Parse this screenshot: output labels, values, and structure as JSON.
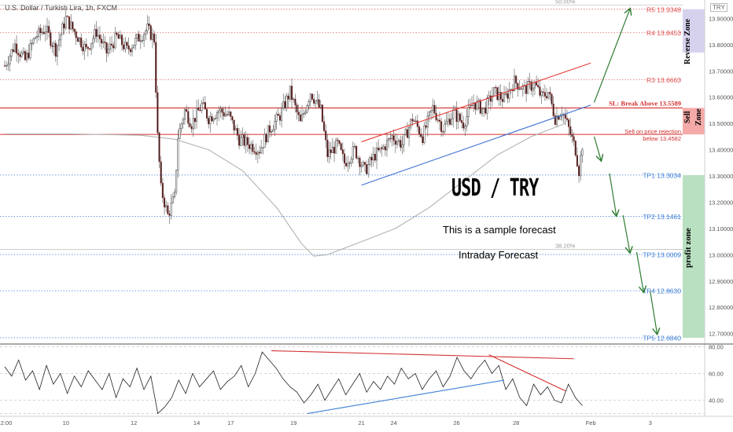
{
  "header": {
    "symbol_line": "U.S. Dollar / Turkish Lira, 1h, FXCM",
    "currency_tag": "TRY"
  },
  "annotations": {
    "title": "USD / TRY",
    "subtitle": "This is a sample forecast",
    "tag": "Intraday Forecast",
    "sell_note_1": "Sell on price rejection",
    "sell_note_2": "below 13.4582",
    "sl_label": "SL: Break Above 13.5589"
  },
  "zones": [
    {
      "label": "Reverse Zone",
      "from": 13.77,
      "to": 13.9348,
      "color": "#d6d2ee",
      "text_color": "#4a3d99"
    },
    {
      "label": "Sell Zone",
      "from": 13.4582,
      "to": 13.5589,
      "color": "#f4aaa8",
      "text_color": "#c62828"
    },
    {
      "label": "profit zone",
      "from": 12.684,
      "to": 13.3034,
      "color": "#b9e0c0",
      "text_color": "#2e7d32"
    }
  ],
  "levels": [
    {
      "label": "R5 13.9348",
      "value": 13.9348,
      "color": "#e05050",
      "style": "dotted"
    },
    {
      "label": "R4 13.8453",
      "value": 13.8453,
      "color": "#e05050",
      "style": "dotted"
    },
    {
      "label": "R3 13.6663",
      "value": 13.6663,
      "color": "#e05050",
      "style": "dotted"
    },
    {
      "label": "TP1 13.3034",
      "value": 13.3034,
      "color": "#3d7fd6",
      "style": "dotted"
    },
    {
      "label": "TP2 13.1461",
      "value": 13.1461,
      "color": "#3d7fd6",
      "style": "dotted"
    },
    {
      "label": "TP3 13.0009",
      "value": 13.0009,
      "color": "#3d7fd6",
      "style": "dotted"
    },
    {
      "label": "TP4 12.8630",
      "value": 12.863,
      "color": "#3d7fd6",
      "style": "dotted"
    },
    {
      "label": "TP5 12.6840",
      "value": 12.684,
      "color": "#3d7fd6",
      "style": "dotted"
    }
  ],
  "fib_levels": [
    {
      "label": "50.00%",
      "value": 13.95
    },
    {
      "label": "38.20%",
      "value": 13.02
    }
  ],
  "solid_lines": [
    {
      "value": 13.5589,
      "color": "#d32f2f"
    },
    {
      "value": 13.4582,
      "color": "#d32f2f"
    }
  ],
  "chart_data": [
    {
      "type": "candlestick",
      "title": "U.S. Dollar / Turkish Lira, 1h, FXCM",
      "ylim": [
        12.66,
        13.97
      ],
      "y_ticks": [
        "13.90000",
        "13.80000",
        "13.70000",
        "13.60000",
        "13.50000",
        "13.40000",
        "13.30000",
        "13.20000",
        "13.10000",
        "13.00000",
        "12.90000",
        "12.80000",
        "12.70000"
      ],
      "y_tick_values": [
        13.9,
        13.8,
        13.7,
        13.6,
        13.5,
        13.4,
        13.3,
        13.2,
        13.1,
        13.0,
        12.9,
        12.8,
        12.7
      ],
      "x_ticks": [
        "12:00",
        "10",
        "12",
        "14",
        "17",
        "19",
        "21",
        "24",
        "26",
        "28",
        "Feb",
        "3"
      ],
      "x_tick_index": [
        0,
        36,
        76,
        113,
        133,
        170,
        210,
        229,
        266,
        301,
        345,
        380
      ],
      "price_path": [
        [
          0,
          13.72
        ],
        [
          6,
          13.8
        ],
        [
          12,
          13.74
        ],
        [
          18,
          13.83
        ],
        [
          24,
          13.86
        ],
        [
          30,
          13.78
        ],
        [
          36,
          13.9
        ],
        [
          42,
          13.84
        ],
        [
          48,
          13.78
        ],
        [
          54,
          13.85
        ],
        [
          60,
          13.77
        ],
        [
          66,
          13.83
        ],
        [
          72,
          13.78
        ],
        [
          78,
          13.82
        ],
        [
          84,
          13.86
        ],
        [
          88,
          13.82
        ],
        [
          90,
          13.45
        ],
        [
          92,
          13.25
        ],
        [
          96,
          13.15
        ],
        [
          100,
          13.22
        ],
        [
          102,
          13.45
        ],
        [
          106,
          13.55
        ],
        [
          110,
          13.5
        ],
        [
          116,
          13.57
        ],
        [
          120,
          13.52
        ],
        [
          126,
          13.55
        ],
        [
          132,
          13.53
        ],
        [
          138,
          13.44
        ],
        [
          144,
          13.42
        ],
        [
          150,
          13.4
        ],
        [
          156,
          13.48
        ],
        [
          162,
          13.53
        ],
        [
          168,
          13.62
        ],
        [
          174,
          13.5
        ],
        [
          180,
          13.62
        ],
        [
          186,
          13.55
        ],
        [
          190,
          13.38
        ],
        [
          196,
          13.42
        ],
        [
          200,
          13.35
        ],
        [
          206,
          13.4
        ],
        [
          212,
          13.32
        ],
        [
          218,
          13.38
        ],
        [
          222,
          13.4
        ],
        [
          228,
          13.45
        ],
        [
          234,
          13.42
        ],
        [
          240,
          13.52
        ],
        [
          246,
          13.45
        ],
        [
          252,
          13.56
        ],
        [
          258,
          13.48
        ],
        [
          264,
          13.54
        ],
        [
          270,
          13.5
        ],
        [
          276,
          13.58
        ],
        [
          282,
          13.55
        ],
        [
          288,
          13.62
        ],
        [
          294,
          13.59
        ],
        [
          300,
          13.66
        ],
        [
          306,
          13.63
        ],
        [
          312,
          13.65
        ],
        [
          316,
          13.6
        ],
        [
          320,
          13.62
        ],
        [
          324,
          13.52
        ],
        [
          328,
          13.55
        ],
        [
          332,
          13.48
        ],
        [
          336,
          13.4
        ],
        [
          338,
          13.32
        ],
        [
          340,
          13.42
        ]
      ],
      "ma_path": [
        [
          0,
          13.46
        ],
        [
          40,
          13.46
        ],
        [
          80,
          13.455
        ],
        [
          100,
          13.44
        ],
        [
          120,
          13.4
        ],
        [
          140,
          13.32
        ],
        [
          160,
          13.18
        ],
        [
          175,
          13.04
        ],
        [
          182,
          12.995
        ],
        [
          190,
          13.0
        ],
        [
          210,
          13.05
        ],
        [
          230,
          13.1
        ],
        [
          250,
          13.18
        ],
        [
          270,
          13.28
        ],
        [
          290,
          13.38
        ],
        [
          310,
          13.45
        ],
        [
          330,
          13.5
        ]
      ],
      "channel": {
        "upper": [
          [
            210,
            13.43
          ],
          [
            345,
            13.73
          ]
        ],
        "lower": [
          [
            210,
            13.265
          ],
          [
            345,
            13.57
          ]
        ]
      },
      "forecast_up": [
        [
          347,
          13.58
        ],
        [
          368,
          13.935
        ]
      ],
      "forecast_down": [
        [
          347,
          13.45
        ],
        [
          351,
          13.36
        ],
        [
          356,
          13.31
        ],
        [
          360,
          13.15
        ],
        [
          364,
          13.15
        ],
        [
          368,
          13.01
        ],
        [
          372,
          13.01
        ],
        [
          376,
          12.86
        ],
        [
          380,
          12.86
        ],
        [
          384,
          12.7
        ]
      ]
    },
    {
      "type": "line",
      "title": "",
      "ylim": [
        28,
        82
      ],
      "y_ticks": [
        "80.00",
        "60.00",
        "40.00"
      ],
      "y_tick_values": [
        80,
        60,
        40
      ],
      "series": [
        {
          "values": [
            65,
            58,
            70,
            55,
            62,
            48,
            66,
            52,
            60,
            45,
            58,
            50,
            62,
            55,
            48,
            60,
            42,
            56,
            50,
            64,
            48,
            58,
            30,
            35,
            42,
            55,
            45,
            60,
            50,
            56,
            62,
            48,
            54,
            58,
            66,
            50,
            60,
            76,
            70,
            64,
            56,
            50,
            46,
            38,
            44,
            52,
            40,
            48,
            56,
            44,
            52,
            60,
            46,
            54,
            48,
            58,
            52,
            64,
            56,
            60,
            48,
            56,
            62,
            50,
            58,
            72,
            62,
            56,
            64,
            70,
            60,
            66,
            48,
            56,
            42,
            36,
            52,
            44,
            50,
            40,
            38,
            52,
            42,
            36
          ]
        }
      ],
      "trendlines": [
        {
          "color": "#d32f2f",
          "from": [
            157,
            77
          ],
          "to": [
            335,
            71
          ]
        },
        {
          "color": "#d32f2f",
          "from": [
            285,
            74
          ],
          "to": [
            330,
            47
          ]
        },
        {
          "color": "#3d7fd6",
          "from": [
            178,
            30
          ],
          "to": [
            294,
            55
          ]
        }
      ]
    }
  ]
}
